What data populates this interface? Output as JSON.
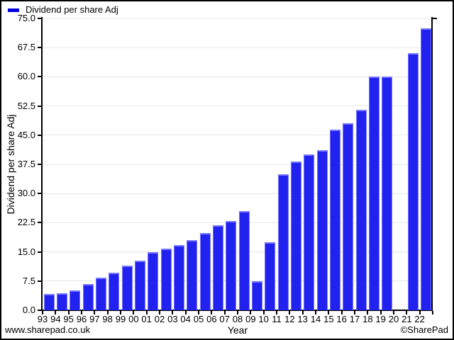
{
  "legend": {
    "label": "Dividend per share Adj",
    "swatch_color": "#0000dd"
  },
  "axes": {
    "x_title": "Year",
    "y_title": "Dividend per share Adj"
  },
  "footer": {
    "left": "www.sharepad.co.uk",
    "right": "©SharePad"
  },
  "colors": {
    "bar_fill": "#2222f0",
    "bar_edge": "#7878ff",
    "gridline": "#e7e7e7",
    "axis": "#000000",
    "background": "#ffffff"
  },
  "chart_data": {
    "type": "bar",
    "title": "",
    "legend_entries": [
      "Dividend per share Adj"
    ],
    "legend_position": "top-left",
    "xlabel": "Year",
    "ylabel": "Dividend per share Adj",
    "ylim": [
      0,
      75
    ],
    "ytick_step": 7.5,
    "ytick_labels": [
      "0.0",
      "7.5",
      "15.0",
      "22.5",
      "30.0",
      "37.5",
      "45.0",
      "52.5",
      "60.0",
      "67.5",
      "75.0"
    ],
    "grid": "horizontal",
    "categories": [
      "93",
      "94",
      "95",
      "96",
      "97",
      "98",
      "99",
      "00",
      "01",
      "02",
      "03",
      "04",
      "05",
      "06",
      "07",
      "08",
      "09",
      "10",
      "11",
      "12",
      "13",
      "14",
      "15",
      "16",
      "17",
      "18",
      "19",
      "20",
      "21",
      "22"
    ],
    "values": [
      4.1,
      4.4,
      5.1,
      6.7,
      8.4,
      9.6,
      11.4,
      12.8,
      15.0,
      15.8,
      16.7,
      18.0,
      19.8,
      21.8,
      22.9,
      25.5,
      7.5,
      17.5,
      35.0,
      38.2,
      40.0,
      41.1,
      46.5,
      48.1,
      51.6,
      60.0,
      60.0,
      0,
      66.0,
      72.5
    ]
  }
}
